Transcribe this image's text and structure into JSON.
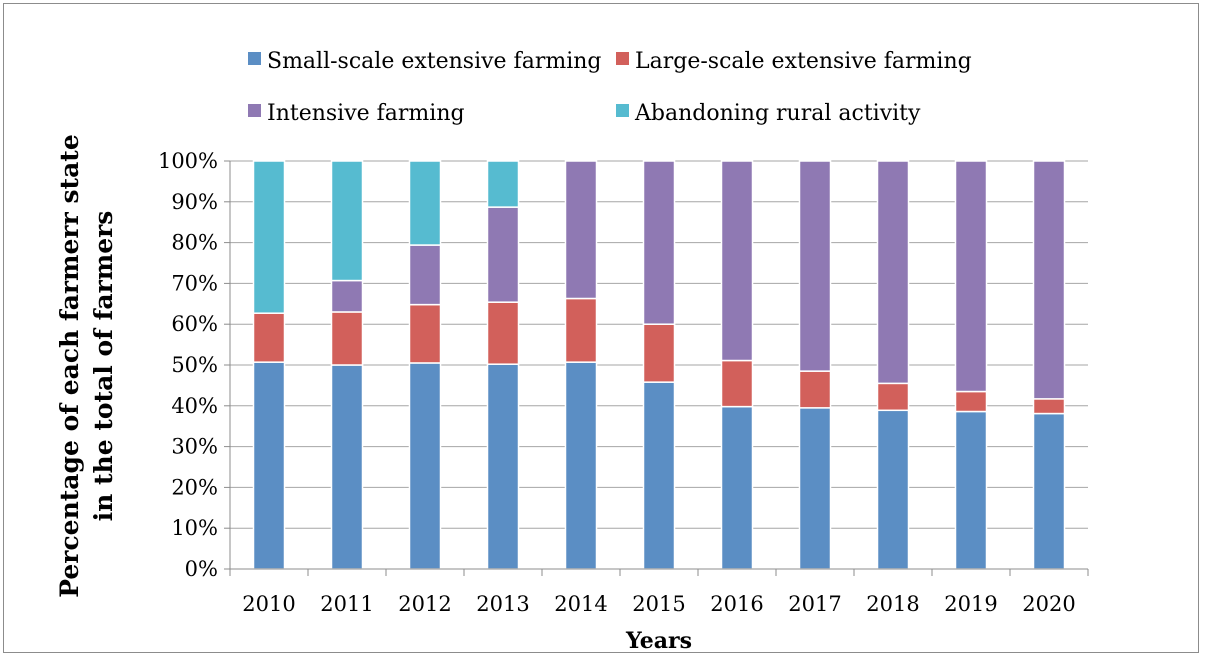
{
  "chart_data": {
    "type": "bar",
    "stacked": "percent",
    "categories": [
      "2010",
      "2011",
      "2012",
      "2013",
      "2014",
      "2015",
      "2016",
      "2017",
      "2018",
      "2019",
      "2020"
    ],
    "series": [
      {
        "name": "Small-scale extensive farming",
        "color": "#5B8EC4",
        "values": [
          50.7,
          50.0,
          50.5,
          50.2,
          50.7,
          45.8,
          39.8,
          39.5,
          38.9,
          38.6,
          38.1
        ]
      },
      {
        "name": "Large-scale extensive farming",
        "color": "#D2605B",
        "values": [
          12.0,
          13.0,
          14.3,
          15.2,
          15.6,
          14.2,
          11.3,
          9.0,
          6.6,
          4.9,
          3.6
        ]
      },
      {
        "name": "Intensive farming",
        "color": "#8F79B3",
        "values": [
          0.0,
          7.7,
          14.6,
          23.3,
          33.7,
          40.0,
          48.9,
          51.5,
          54.5,
          56.5,
          58.3
        ]
      },
      {
        "name": "Abandoning rural activity",
        "color": "#56BBD0",
        "values": [
          37.3,
          29.3,
          20.6,
          11.3,
          0.0,
          0.0,
          0.0,
          0.0,
          0.0,
          0.0,
          0.0
        ]
      }
    ],
    "y_ticks": [
      "0%",
      "10%",
      "20%",
      "30%",
      "40%",
      "50%",
      "60%",
      "70%",
      "80%",
      "90%",
      "100%"
    ],
    "ylim": [
      0,
      100
    ],
    "xlabel": "Years",
    "ylabel_lines": [
      "Percentage of each farmerr state",
      "in the total of farmers"
    ],
    "legend_position": "top",
    "grid": "horizontal"
  }
}
